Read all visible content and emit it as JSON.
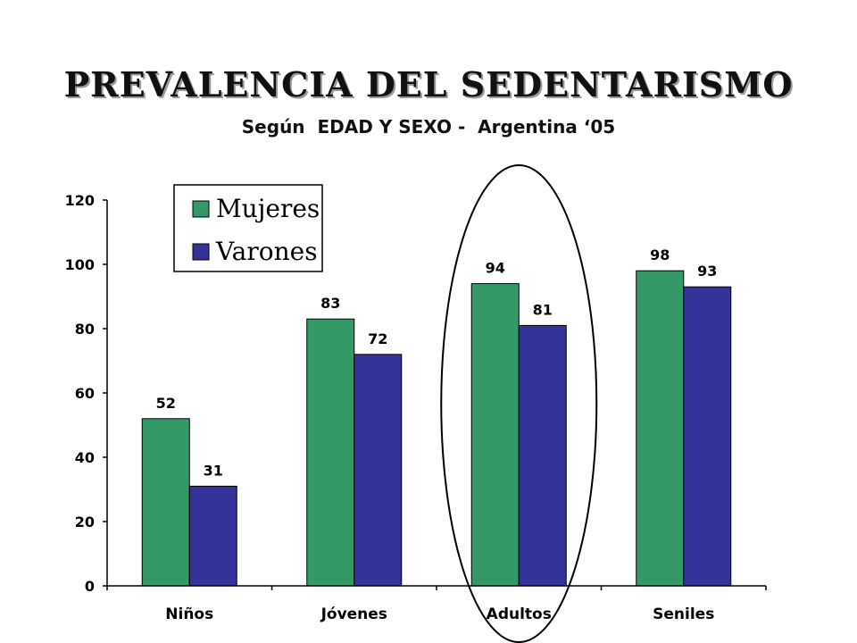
{
  "page": {
    "title": "PREVALENCIA DEL SEDENTARISMO",
    "subtitle": "Según  EDAD Y SEXO -  Argentina ‘05"
  },
  "colors": {
    "mujeres": "#339966",
    "varones": "#333399",
    "axis": "#000000"
  },
  "chart_data": {
    "type": "bar",
    "categories": [
      "Niños",
      "Jóvenes",
      "Adultos",
      "Seniles"
    ],
    "series": [
      {
        "name": "Mujeres",
        "values": [
          52,
          83,
          94,
          98
        ]
      },
      {
        "name": "Varones",
        "values": [
          31,
          72,
          81,
          93
        ]
      }
    ],
    "ylim": [
      0,
      120
    ],
    "yticks": [
      "0",
      "20",
      "40",
      "60",
      "80",
      "100",
      "120"
    ],
    "grid": false,
    "legend": "top-left",
    "annotation": "ellipse-highlight-around-Adultos"
  }
}
